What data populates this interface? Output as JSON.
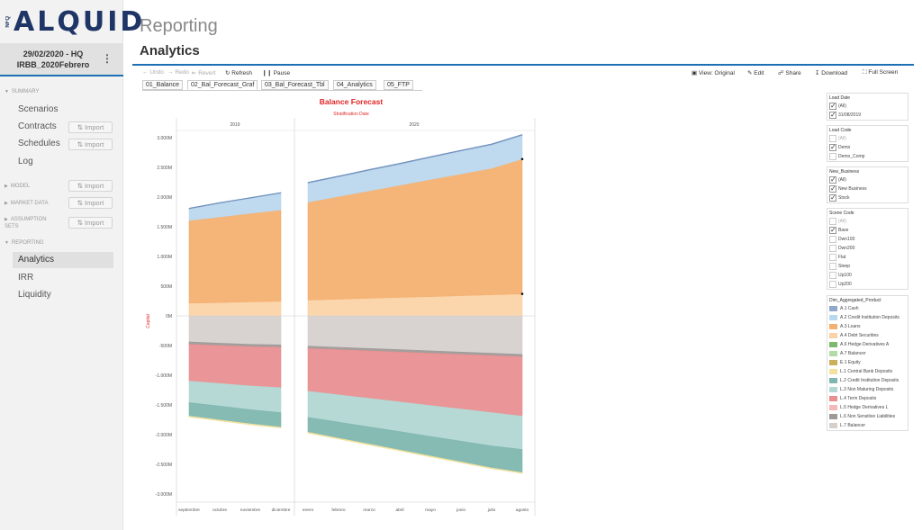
{
  "sidebar": {
    "logo_text": "ALQUID",
    "logo_prefix": "NFQ",
    "context_line1": "29/02/2020 - HQ",
    "context_line2": "IRBB_2020Febrero",
    "menu_icon": "vertical-dots-icon",
    "sections": {
      "summary": "SUMMARY",
      "model": "MODEL",
      "market_data": "MARKET DATA",
      "assumption_sets": "ASSUMPTION SETS",
      "reporting": "REPORTING"
    },
    "summary_items": [
      "Scenarios",
      "Contracts",
      "Schedules",
      "Log"
    ],
    "reporting_items": [
      "Analytics",
      "IRR",
      "Liquidity"
    ],
    "import_label": "⇅ Import"
  },
  "header": {
    "title": "Reporting",
    "subtitle": "Analytics"
  },
  "toolbar": {
    "undo": "Undo",
    "redo": "Redo",
    "revert": "Revert",
    "refresh": "Refresh",
    "pause": "Pause",
    "view_original": "View: Original",
    "edit": "Edit",
    "share": "Share",
    "download": "Download",
    "full_screen": "Full Screen"
  },
  "tabs": [
    "01_Balance",
    "02_Bal_Forecast_Graf",
    "03_Bal_Forecast_Tbl",
    "04_Analytics",
    "05_FTP"
  ],
  "active_tab": "02_Bal_Forecast_Graf",
  "filters": {
    "load_date": {
      "title": "Load Date",
      "options": [
        {
          "label": "(All)",
          "checked": true
        },
        {
          "label": "31/08/2019",
          "checked": true
        }
      ]
    },
    "load_code": {
      "title": "Load Code",
      "options": [
        {
          "label": "(All)",
          "checked": false
        },
        {
          "label": "Demo",
          "checked": true
        },
        {
          "label": "Demo_Comp",
          "checked": false
        }
      ]
    },
    "new_business": {
      "title": "New_Business",
      "options": [
        {
          "label": "(All)",
          "checked": true
        },
        {
          "label": "New Business",
          "checked": true
        },
        {
          "label": "Stock",
          "checked": true
        }
      ]
    },
    "scene_code": {
      "title": "Scene Code",
      "options": [
        {
          "label": "(All)",
          "checked": false
        },
        {
          "label": "Base",
          "checked": true
        },
        {
          "label": "Dwn100",
          "checked": false
        },
        {
          "label": "Dwn200",
          "checked": false
        },
        {
          "label": "Flat",
          "checked": false
        },
        {
          "label": "Steep",
          "checked": false
        },
        {
          "label": "Up100",
          "checked": false
        },
        {
          "label": "Up200",
          "checked": false
        }
      ]
    },
    "legend": {
      "title": "Dim_Aggregated_Product",
      "items": [
        {
          "label": "A.1 Cash",
          "color": "#8fa8cc"
        },
        {
          "label": "A.2 Credit Institution Deposits",
          "color": "#bcd8ee"
        },
        {
          "label": "A.3 Loans",
          "color": "#f4b071"
        },
        {
          "label": "A.4 Debt Securities",
          "color": "#fbd3a6"
        },
        {
          "label": "A.6 Hedge Derivatives A",
          "color": "#7cb96d"
        },
        {
          "label": "A.7 Balancer",
          "color": "#b4dba7"
        },
        {
          "label": "E.1 Equity",
          "color": "#cbb05c"
        },
        {
          "label": "L.1 Central Bank Deposits",
          "color": "#f3e29e"
        },
        {
          "label": "L.2 Credit Institution Deposits",
          "color": "#7fb7b0"
        },
        {
          "label": "L.3 Non Maturing Deposits",
          "color": "#b3d7d3"
        },
        {
          "label": "L.4 Term Deposits",
          "color": "#e98f91"
        },
        {
          "label": "L.5 Hedge Derivatives L",
          "color": "#f5b8b9"
        },
        {
          "label": "L.6 Non Sensitive Liabilities",
          "color": "#9f9a98"
        },
        {
          "label": "L.7 Balancer",
          "color": "#d6d0cd"
        }
      ]
    }
  },
  "chart_data": {
    "type": "area",
    "title": "Balance Forecast",
    "column_header": "Stratification Date",
    "ylabel": "Capital",
    "panels": [
      {
        "label": "2019",
        "x": [
          "septiembre",
          "octubre",
          "noviembre",
          "diciembre"
        ]
      },
      {
        "label": "2020",
        "x": [
          "enero",
          "febrero",
          "marzo",
          "abril",
          "mayo",
          "junio",
          "julio",
          "agosto"
        ]
      }
    ],
    "yticks": [
      "3.000M",
      "2.500M",
      "2.000M",
      "1.500M",
      "1.000M",
      "500M",
      "0M",
      "-500M",
      "-1.000M",
      "-1.500M",
      "-2.000M",
      "-2.500M",
      "-3.000M"
    ],
    "ylim": [
      -3000,
      3000
    ],
    "series": [
      {
        "name": "A.4 Debt Securities",
        "color": "#fbd3a6",
        "side": "asset",
        "values": [
          215,
          225,
          235,
          245,
          265,
          280,
          295,
          310,
          325,
          340,
          355,
          370
        ]
      },
      {
        "name": "A.3 Loans",
        "color": "#f4b071",
        "side": "asset",
        "values": [
          1390,
          1440,
          1490,
          1540,
          1650,
          1730,
          1810,
          1890,
          1970,
          2050,
          2130,
          2270
        ]
      },
      {
        "name": "A.2 Credit Institution Deposits",
        "color": "#bcd8ee",
        "side": "asset",
        "values": [
          195,
          230,
          255,
          280,
          320,
          330,
          345,
          355,
          370,
          385,
          395,
          400
        ]
      },
      {
        "name": "A.1 Cash",
        "color": "#8fa8cc",
        "side": "asset",
        "values": [
          10,
          10,
          10,
          10,
          12,
          12,
          12,
          12,
          12,
          12,
          12,
          12
        ]
      },
      {
        "name": "L.7 Balancer",
        "color": "#d6d0cd",
        "side": "liability",
        "values": [
          440,
          460,
          480,
          490,
          510,
          530,
          550,
          570,
          590,
          610,
          630,
          650
        ]
      },
      {
        "name": "L.6 Non Sensitive Liabilities",
        "color": "#9f9a98",
        "side": "liability",
        "values": [
          40,
          40,
          40,
          40,
          40,
          40,
          40,
          40,
          40,
          40,
          40,
          40
        ]
      },
      {
        "name": "L.4 Term Deposits",
        "color": "#e98f91",
        "side": "liability",
        "values": [
          620,
          640,
          660,
          680,
          720,
          760,
          800,
          840,
          880,
          920,
          960,
          1000
        ]
      },
      {
        "name": "L.3 Non Maturing Deposits",
        "color": "#b3d7d3",
        "side": "liability",
        "values": [
          360,
          380,
          400,
          420,
          440,
          460,
          480,
          500,
          520,
          540,
          560,
          560
        ]
      },
      {
        "name": "L.2 Credit Institution Deposits",
        "color": "#7fb7b0",
        "side": "liability",
        "values": [
          230,
          235,
          240,
          245,
          250,
          270,
          290,
          310,
          330,
          350,
          370,
          390
        ]
      },
      {
        "name": "L.1 Central Bank Deposits",
        "color": "#f3e29e",
        "side": "liability",
        "values": [
          15,
          15,
          15,
          15,
          15,
          15,
          15,
          15,
          15,
          15,
          15,
          15
        ]
      }
    ]
  }
}
